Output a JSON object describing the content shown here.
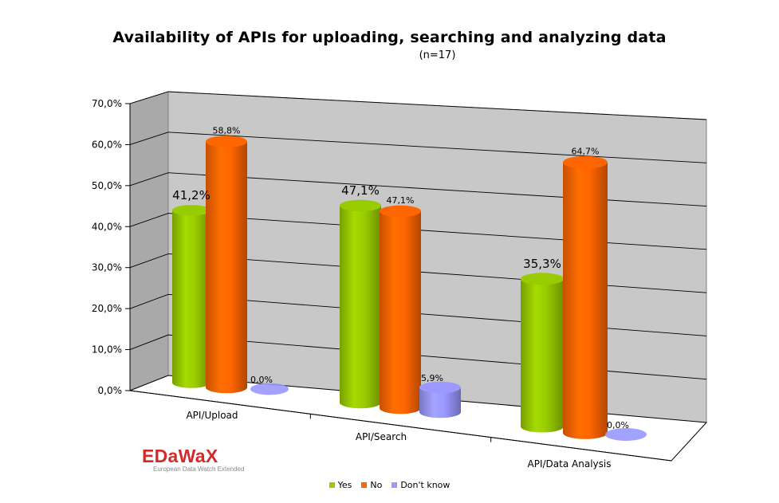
{
  "chart_data": {
    "type": "bar",
    "variant": "3d-cylinder",
    "title": "Availability of APIs for uploading, searching and analyzing data",
    "subtitle": "(n=17)",
    "categories": [
      "API/Upload",
      "API/Search",
      "API/Data Analysis"
    ],
    "series": [
      {
        "name": "Yes",
        "color": "#99cc00",
        "values": [
          41.2,
          47.1,
          35.3
        ],
        "labels": [
          "41,2%",
          "47,1%",
          "35,3%"
        ]
      },
      {
        "name": "No",
        "color": "#ff6600",
        "values": [
          58.8,
          47.1,
          64.7
        ],
        "labels": [
          "58,8%",
          "47,1%",
          "64,7%"
        ]
      },
      {
        "name": "Don't know",
        "color": "#9999ff",
        "values": [
          0.0,
          5.9,
          0.0
        ],
        "labels": [
          "0,0%",
          "5,9%",
          "0,0%"
        ]
      }
    ],
    "ylim": [
      0,
      70
    ],
    "yticks": [
      0,
      10,
      20,
      30,
      40,
      50,
      60,
      70
    ],
    "ytick_labels": [
      "0,0%",
      "10,0%",
      "20,0%",
      "30,0%",
      "40,0%",
      "50,0%",
      "60,0%",
      "70,0%"
    ],
    "grid": true,
    "legend_position": "bottom"
  },
  "branding": {
    "logo_name": "EDaWaX",
    "logo_tagline": "European Data Watch Extended",
    "logo_color": "#d42a2a"
  }
}
